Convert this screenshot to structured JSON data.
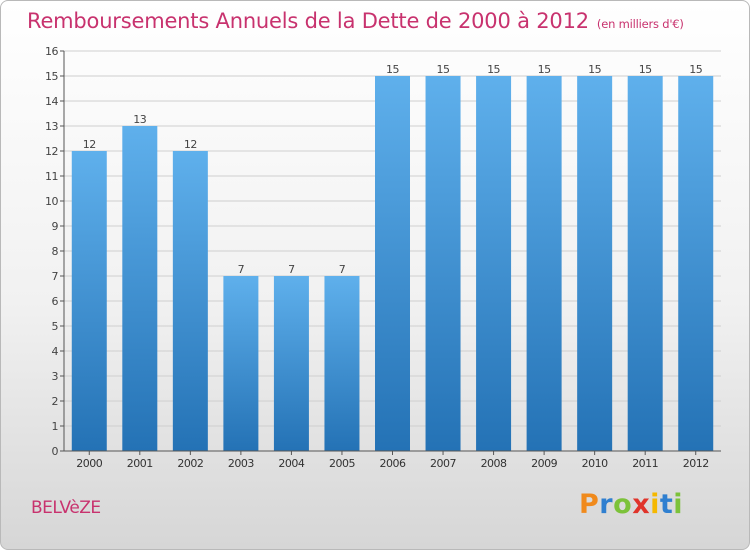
{
  "title": "Remboursements Annuels de la Dette de 2000 à 2012",
  "subtitle": "(en milliers d'€)",
  "commune": "BELVèZE",
  "logo": {
    "letters": [
      "P",
      "r",
      "o",
      "x",
      "i",
      "t",
      "i"
    ],
    "colors": [
      "#f08a1c",
      "#2f7fd0",
      "#7cc23a",
      "#e0342b",
      "#f5b800",
      "#2f7fd0",
      "#7cc23a"
    ]
  },
  "chart_data": {
    "type": "bar",
    "categories": [
      "2000",
      "2001",
      "2002",
      "2003",
      "2004",
      "2005",
      "2006",
      "2007",
      "2008",
      "2009",
      "2010",
      "2011",
      "2012"
    ],
    "values": [
      12,
      13,
      12,
      7,
      7,
      7,
      15,
      15,
      15,
      15,
      15,
      15,
      15
    ],
    "data_labels": [
      "12",
      "13",
      "12",
      "7",
      "7",
      "7",
      "15",
      "15",
      "15",
      "15",
      "15",
      "15",
      "15"
    ],
    "yticks": [
      "0",
      "1",
      "2",
      "3",
      "4",
      "5",
      "6",
      "7",
      "8",
      "9",
      "10",
      "11",
      "12",
      "13",
      "14",
      "15",
      "16"
    ],
    "ylim": [
      0,
      16
    ],
    "grid": "horizontal",
    "bar_color": "#3a8fd6"
  }
}
